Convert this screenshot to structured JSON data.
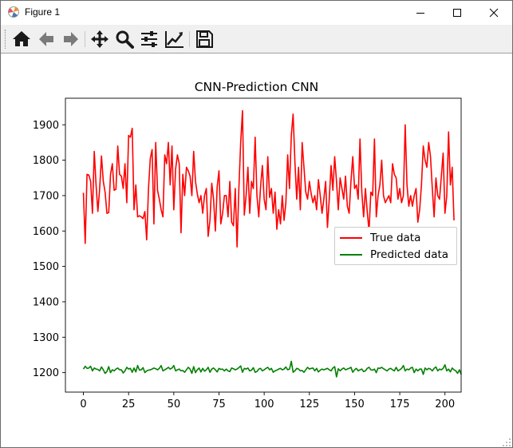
{
  "window": {
    "title": "Figure 1",
    "controls": {
      "minimize": "minimize",
      "maximize": "maximize",
      "close": "close"
    }
  },
  "toolbar": {
    "buttons": [
      {
        "name": "home",
        "icon": "home-icon"
      },
      {
        "name": "back",
        "icon": "arrow-left-icon"
      },
      {
        "name": "forward",
        "icon": "arrow-right-icon"
      },
      {
        "name": "pan",
        "icon": "move-icon"
      },
      {
        "name": "zoom",
        "icon": "magnifier-icon"
      },
      {
        "name": "configure-subplots",
        "icon": "sliders-icon"
      },
      {
        "name": "edit-axis",
        "icon": "line-chart-icon"
      },
      {
        "name": "save",
        "icon": "floppy-icon"
      }
    ]
  },
  "chart_data": {
    "type": "line",
    "title": "CNN-Prediction CNN",
    "xlabel": "",
    "ylabel": "",
    "xlim": [
      -9.95,
      208.95
    ],
    "ylim": [
      1145,
      1975
    ],
    "xticks": [
      0,
      25,
      50,
      75,
      100,
      125,
      150,
      175,
      200
    ],
    "yticks": [
      1200,
      1300,
      1400,
      1500,
      1600,
      1700,
      1800,
      1900
    ],
    "legend_position": "center-right",
    "grid": false,
    "series": [
      {
        "name": "True data",
        "color": "#ff0000",
        "values": [
          1708,
          1565,
          1760,
          1758,
          1740,
          1650,
          1825,
          1730,
          1655,
          1720,
          1812,
          1740,
          1710,
          1650,
          1652,
          1760,
          1790,
          1715,
          1718,
          1840,
          1760,
          1755,
          1720,
          1790,
          1680,
          1870,
          1865,
          1890,
          1660,
          1730,
          1640,
          1643,
          1640,
          1635,
          1655,
          1575,
          1720,
          1805,
          1830,
          1620,
          1850,
          1715,
          1690,
          1660,
          1640,
          1815,
          1790,
          1850,
          1730,
          1840,
          1660,
          1775,
          1815,
          1790,
          1595,
          1760,
          1700,
          1780,
          1770,
          1755,
          1700,
          1825,
          1740,
          1705,
          1680,
          1700,
          1650,
          1700,
          1720,
          1585,
          1630,
          1735,
          1690,
          1600,
          1725,
          1770,
          1620,
          1650,
          1700,
          1700,
          1640,
          1740,
          1625,
          1615,
          1720,
          1555,
          1720,
          1850,
          1940,
          1645,
          1700,
          1780,
          1650,
          1740,
          1720,
          1865,
          1700,
          1640,
          1725,
          1785,
          1690,
          1660,
          1810,
          1695,
          1720,
          1650,
          1710,
          1605,
          1660,
          1620,
          1700,
          1630,
          1680,
          1815,
          1720,
          1870,
          1930,
          1795,
          1690,
          1780,
          1660,
          1850,
          1780,
          1710,
          1690,
          1740,
          1705,
          1680,
          1700,
          1660,
          1745,
          1700,
          1650,
          1690,
          1740,
          1610,
          1690,
          1785,
          1715,
          1810,
          1740,
          1660,
          1750,
          1720,
          1690,
          1755,
          1670,
          1650,
          1740,
          1810,
          1720,
          1730,
          1690,
          1860,
          1710,
          1640,
          1720,
          1655,
          1600,
          1710,
          1700,
          1860,
          1640,
          1700,
          1730,
          1800,
          1700,
          1680,
          1690,
          1700,
          1680,
          1790,
          1760,
          1750,
          1690,
          1720,
          1680,
          1700,
          1900,
          1730,
          1670,
          1700,
          1670,
          1700,
          1720,
          1625,
          1660,
          1730,
          1840,
          1800,
          1780,
          1850,
          1810,
          1720,
          1640,
          1750,
          1700,
          1690,
          1755,
          1820,
          1650,
          1700,
          1880,
          1730,
          1780,
          1630
        ]
      },
      {
        "name": "Predicted data",
        "color": "#008000",
        "values": [
          1210,
          1218,
          1212,
          1213,
          1218,
          1205,
          1213,
          1210,
          1209,
          1205,
          1216,
          1208,
          1198,
          1203,
          1217,
          1200,
          1208,
          1205,
          1210,
          1213,
          1208,
          1208,
          1199,
          1205,
          1215,
          1210,
          1212,
          1201,
          1213,
          1202,
          1220,
          1207,
          1208,
          1214,
          1200,
          1205,
          1207,
          1208,
          1210,
          1213,
          1211,
          1208,
          1212,
          1220,
          1205,
          1208,
          1211,
          1215,
          1210,
          1213,
          1220,
          1205,
          1208,
          1210,
          1205,
          1206,
          1201,
          1208,
          1215,
          1210,
          1198,
          1217,
          1200,
          1208,
          1213,
          1202,
          1212,
          1204,
          1208,
          1215,
          1201,
          1210,
          1213,
          1208,
          1202,
          1212,
          1209,
          1210,
          1205,
          1210,
          1205,
          1203,
          1213,
          1211,
          1208,
          1210,
          1214,
          1219,
          1201,
          1212,
          1210,
          1213,
          1205,
          1207,
          1214,
          1201,
          1203,
          1210,
          1212,
          1205,
          1208,
          1212,
          1215,
          1208,
          1212,
          1201,
          1205,
          1207,
          1210,
          1212,
          1208,
          1210,
          1216,
          1208,
          1210,
          1232,
          1201,
          1205,
          1212,
          1210,
          1205,
          1206,
          1201,
          1208,
          1215,
          1210,
          1212,
          1213,
          1205,
          1212,
          1202,
          1207,
          1210,
          1208,
          1210,
          1212,
          1208,
          1205,
          1213,
          1217,
          1188,
          1211,
          1205,
          1210,
          1213,
          1208,
          1210,
          1212,
          1215,
          1201,
          1208,
          1212,
          1205,
          1208,
          1210,
          1203,
          1205,
          1212,
          1215,
          1208,
          1207,
          1210,
          1200,
          1213,
          1212,
          1215,
          1211,
          1208,
          1205,
          1210,
          1212,
          1208,
          1205,
          1215,
          1205,
          1208,
          1212,
          1220,
          1205,
          1210,
          1208,
          1213,
          1215,
          1200,
          1210,
          1205,
          1210,
          1210,
          1195,
          1213,
          1208,
          1212,
          1210,
          1205,
          1212,
          1216,
          1205,
          1210,
          1208,
          1212,
          1222,
          1205,
          1210,
          1202,
          1213,
          1208,
          1205,
          1198,
          1208,
          1195
        ]
      }
    ]
  }
}
